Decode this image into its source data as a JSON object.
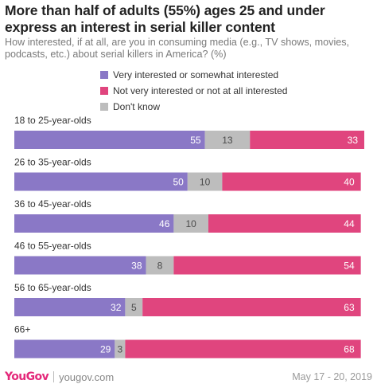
{
  "title": "More than half of adults (55%) ages 25 and under express an interest in serial killer content",
  "subtitle": "How interested, if at all, are you in consuming media (e.g., TV shows, movies, podcasts, etc.) about serial killers in America? (%)",
  "footer": {
    "logo": "YouGov",
    "site": "yougov.com",
    "dates": "May 17 - 20, 2019"
  },
  "colors": {
    "interested": "#8a78c6",
    "dont_know": "#bdbdbd",
    "not_interested": "#e0457e"
  },
  "chart_data": {
    "type": "bar",
    "orientation": "horizontal",
    "stacked": true,
    "categories": [
      "18 to 25-year-olds",
      "26 to 35-year-olds",
      "36 to 45-year-olds",
      "46 to 55-year-olds",
      "56 to 65-year-olds",
      "66+"
    ],
    "series": [
      {
        "name": "Very interested or somewhat interested",
        "values": [
          55,
          50,
          46,
          38,
          32,
          29
        ],
        "color": "#8a78c6"
      },
      {
        "name": "Don't know",
        "values": [
          13,
          10,
          10,
          8,
          5,
          3
        ],
        "color": "#bdbdbd"
      },
      {
        "name": "Not very interested or not at all interested",
        "values": [
          33,
          40,
          44,
          54,
          63,
          68
        ],
        "color": "#e0457e"
      }
    ],
    "legend": [
      "Very interested or somewhat interested",
      "Not very interested or not at all interested",
      "Don't know"
    ],
    "xlim": [
      0,
      101
    ],
    "grid": false,
    "legend_position": "top"
  }
}
